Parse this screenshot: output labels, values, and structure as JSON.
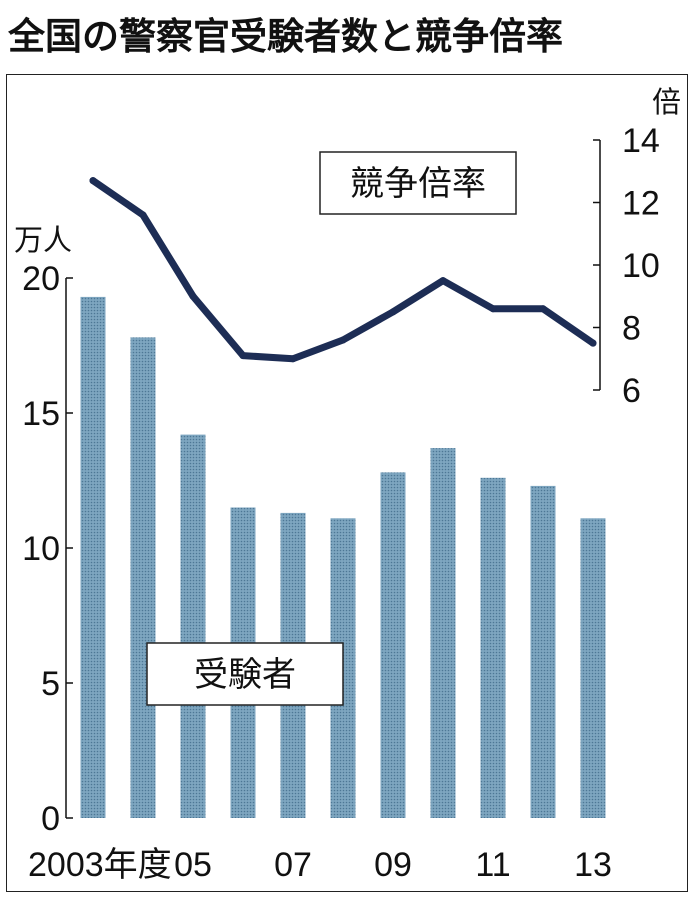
{
  "title": "全国の警察官受験者数と競争倍率",
  "colors": {
    "bar": "#6f98b4",
    "line": "#1d2d55",
    "axis": "#111111"
  },
  "chart_data": {
    "type": "bar+line",
    "categories": [
      "2003",
      "2004",
      "2005",
      "2006",
      "2007",
      "2008",
      "2009",
      "2010",
      "2011",
      "2012",
      "2013"
    ],
    "x_tick_labels": [
      {
        "index": 0,
        "label": "2003年度"
      },
      {
        "index": 2,
        "label": "05"
      },
      {
        "index": 4,
        "label": "07"
      },
      {
        "index": 6,
        "label": "09"
      },
      {
        "index": 8,
        "label": "11"
      },
      {
        "index": 10,
        "label": "13"
      }
    ],
    "series": [
      {
        "name": "受験者",
        "type": "bar",
        "axis": "left",
        "values": [
          19.3,
          17.8,
          14.2,
          11.5,
          11.3,
          11.1,
          12.8,
          13.7,
          12.6,
          12.3,
          11.1
        ]
      },
      {
        "name": "競争倍率",
        "type": "line",
        "axis": "right",
        "values": [
          12.7,
          11.6,
          9.0,
          7.1,
          7.0,
          7.6,
          8.5,
          9.5,
          8.6,
          8.6,
          7.5
        ]
      }
    ],
    "left_axis": {
      "unit": "万人",
      "min": 0,
      "max": 20,
      "ticks": [
        0,
        5,
        10,
        15,
        20
      ]
    },
    "right_axis": {
      "unit": "倍",
      "min": 6,
      "max": 14,
      "ticks": [
        6,
        8,
        10,
        12,
        14
      ]
    },
    "grid": false
  }
}
